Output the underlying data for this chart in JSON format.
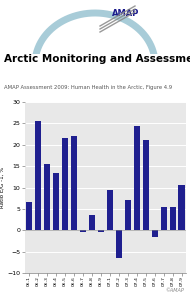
{
  "title": "Arctic Monitoring and Assessment Programme",
  "subtitle": "AMAP Assessment 2009: Human Health in the Arctic, Figure 4.9",
  "ylabel": "Ratio E/G -1, %",
  "categories": [
    "06-1",
    "06-2",
    "06-3",
    "06-4",
    "06-5",
    "06-6",
    "06-7",
    "06-8",
    "06-9",
    "07-1",
    "07-2",
    "07-3",
    "07-4",
    "07-5",
    "07-6",
    "07-7",
    "07-8",
    "07-9"
  ],
  "values": [
    6.5,
    25.5,
    15.5,
    13.5,
    21.5,
    22.0,
    -0.3,
    3.5,
    -0.3,
    9.5,
    -6.5,
    7.0,
    24.5,
    21.0,
    -1.5,
    5.5,
    5.5,
    10.5
  ],
  "bar_color": "#1f1f8f",
  "ylim": [
    -10,
    30
  ],
  "yticks": [
    -10,
    -5,
    0,
    5,
    10,
    15,
    20,
    25,
    30
  ],
  "background_color": "#e8e8e8",
  "copyright": "©AMAP",
  "arc_color": "#a8ccd8",
  "logo_text_color": "#1a1a8c",
  "stripe_color": "#888888",
  "title_fontsize": 7.5,
  "subtitle_fontsize": 3.8,
  "ylabel_fontsize": 4.0,
  "ytick_fontsize": 4.5,
  "xtick_fontsize": 3.2
}
